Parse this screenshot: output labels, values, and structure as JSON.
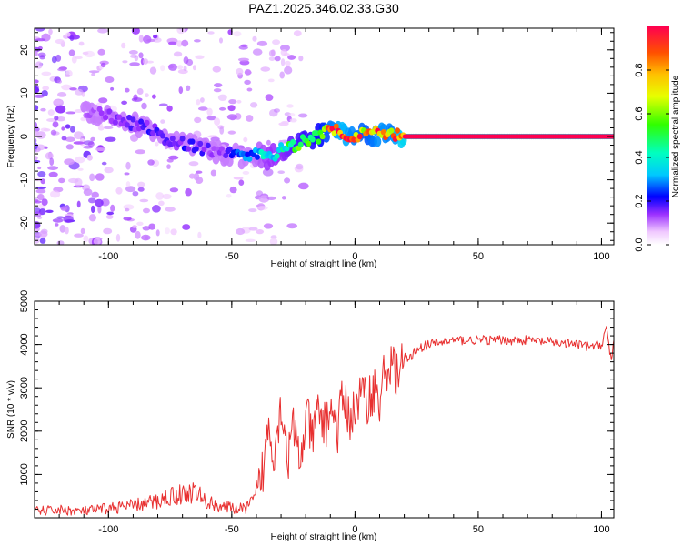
{
  "page": {
    "title": "PAZ1.2025.346.02.33.G30"
  },
  "chart_data": [
    {
      "type": "heatmap",
      "title": "PAZ1.2025.346.02.33.G30",
      "xlabel": "Height of straight line (km)",
      "ylabel": "Frequency (Hz)",
      "xlim": [
        -130,
        105
      ],
      "ylim": [
        -25,
        25
      ],
      "xticks": [
        -100,
        -50,
        0,
        50,
        100
      ],
      "xtick_labels": [
        "-100",
        "-50",
        "0",
        "50",
        "100"
      ],
      "yticks": [
        -20,
        -10,
        0,
        10,
        20
      ],
      "ytick_labels": [
        "-20",
        "-10",
        "0",
        "10",
        "20"
      ],
      "colorbar": {
        "label": "Normalized spectral amplitude",
        "range": [
          0,
          1
        ],
        "ticks": [
          0.0,
          0.2,
          0.4,
          0.6,
          0.8
        ],
        "tick_labels": [
          "0.0",
          "0.2",
          "0.4",
          "0.6",
          "0.8"
        ],
        "colormap": "spectral-rainbow"
      },
      "ridge": {
        "x": [
          -110,
          -100,
          -90,
          -82,
          -75,
          -68,
          -60,
          -55,
          -50,
          -45,
          -40,
          -35,
          -30,
          -25,
          -20,
          -15,
          -10,
          -5,
          0,
          5,
          10,
          15,
          20,
          30,
          40,
          60,
          80,
          100,
          105
        ],
        "y": [
          6,
          5,
          3,
          1.5,
          -1,
          -2,
          -3,
          -4,
          -4,
          -5,
          -4,
          -5,
          -3,
          -2,
          -1,
          0,
          2,
          1,
          0,
          1,
          0.5,
          0.5,
          0,
          0,
          0,
          0,
          0,
          0,
          0
        ],
        "amplitude": [
          0.1,
          0.12,
          0.15,
          0.18,
          0.15,
          0.18,
          0.15,
          0.12,
          0.2,
          0.25,
          0.3,
          0.4,
          0.4,
          0.5,
          0.55,
          0.6,
          0.8,
          0.9,
          0.8,
          0.75,
          0.85,
          0.8,
          1.0,
          1.0,
          1.0,
          1.0,
          1.0,
          1.0,
          1.0
        ]
      }
    },
    {
      "type": "line",
      "xlabel": "Height of straight line (km)",
      "ylabel": "SNR (10 * v/v)",
      "xlim": [
        -130,
        105
      ],
      "ylim": [
        0,
        5000
      ],
      "xticks": [
        -100,
        -50,
        0,
        50,
        100
      ],
      "xtick_labels": [
        "-100",
        "-50",
        "0",
        "50",
        "100"
      ],
      "yticks": [
        1000,
        2000,
        3000,
        4000,
        5000
      ],
      "ytick_labels": [
        "1000",
        "2000",
        "3000",
        "4000",
        "5000"
      ],
      "series": [
        {
          "name": "SNR",
          "color": "#e83030",
          "x": [
            -130,
            -120,
            -110,
            -100,
            -90,
            -80,
            -75,
            -70,
            -65,
            -60,
            -55,
            -50,
            -45,
            -40,
            -37,
            -35,
            -33,
            -30,
            -27,
            -25,
            -22,
            -20,
            -17,
            -15,
            -12,
            -10,
            -7,
            -5,
            -2,
            0,
            3,
            5,
            8,
            10,
            12,
            15,
            18,
            20,
            22,
            25,
            30,
            35,
            40,
            50,
            60,
            70,
            80,
            90,
            95,
            100,
            102,
            104,
            105
          ],
          "y": [
            150,
            180,
            150,
            220,
            280,
            380,
            500,
            550,
            600,
            350,
            280,
            220,
            200,
            450,
            1200,
            2200,
            1500,
            2600,
            1400,
            2100,
            1200,
            2400,
            1800,
            2500,
            2100,
            2600,
            2000,
            2800,
            2300,
            2500,
            2900,
            2700,
            3000,
            2600,
            3400,
            3500,
            3300,
            3700,
            3650,
            3900,
            4000,
            4050,
            4100,
            4100,
            4100,
            4100,
            4050,
            4000,
            3950,
            4000,
            4400,
            3600,
            4100
          ]
        }
      ]
    }
  ]
}
